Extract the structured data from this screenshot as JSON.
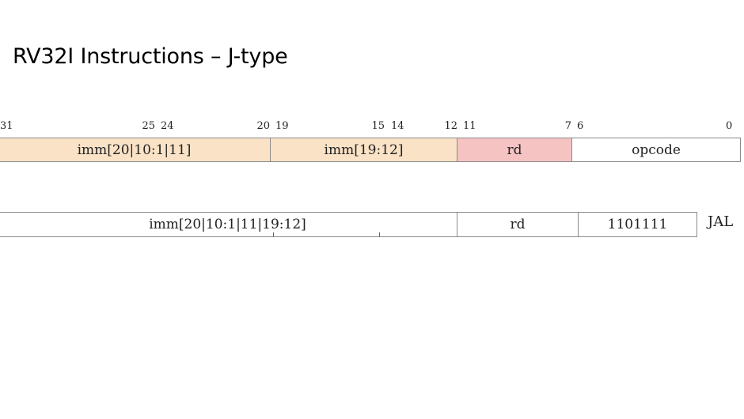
{
  "slide": {
    "title": "RV32I Instructions – J-type"
  },
  "format_row": {
    "bit_labels": [
      "31",
      "25",
      "24",
      "20",
      "19",
      "15",
      "14",
      "12",
      "11",
      "7",
      "6",
      "0"
    ],
    "fields": [
      "imm[20|10:1|11]",
      "imm[19:12]",
      "rd",
      "opcode"
    ],
    "colors": {
      "imm": "#fae2c6",
      "rd": "#f6c3c3",
      "opcode": "#ffffff"
    }
  },
  "instruction_row": {
    "fields": [
      "imm[20|10:1|11|19:12]",
      "rd",
      "1101111"
    ],
    "mnemonic": "JAL"
  }
}
